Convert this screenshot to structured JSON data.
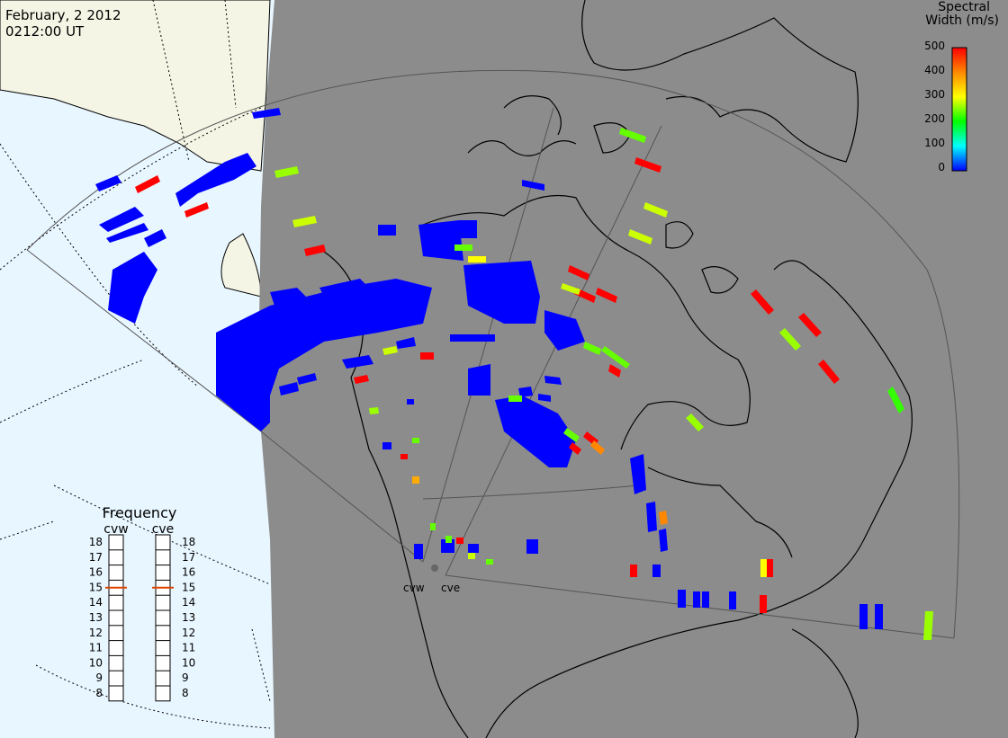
{
  "header": {
    "date": "February, 2 2012",
    "time": "0212:00 UT"
  },
  "colorbar": {
    "title_line1": "Spectral",
    "title_line2": "Width (m/s)",
    "ticks": [
      "500",
      "400",
      "300",
      "200",
      "100",
      "0"
    ],
    "stops": [
      "#ff0000",
      "#ff8800",
      "#ffff00",
      "#00ff00",
      "#00ffff",
      "#0000ff"
    ]
  },
  "frequency_panel": {
    "title": "Frequency",
    "radars": [
      {
        "name": "cvw",
        "value": 15
      },
      {
        "name": "cve",
        "value": 15
      }
    ],
    "levels": [
      "18",
      "17",
      "16",
      "15",
      "14",
      "13",
      "12",
      "11",
      "10",
      "9",
      "8"
    ]
  },
  "radar_sites": {
    "west_label": "cvw",
    "east_label": "cve"
  },
  "colors": {
    "ocean_daylight": "#e8f6ff",
    "land_daylight": "#f5f5e6",
    "night_shade": "#8c8c8c",
    "coastline": "#000000",
    "fov_outline": "#555555",
    "low_width": "#0000ff",
    "marker": "#dd4400"
  }
}
